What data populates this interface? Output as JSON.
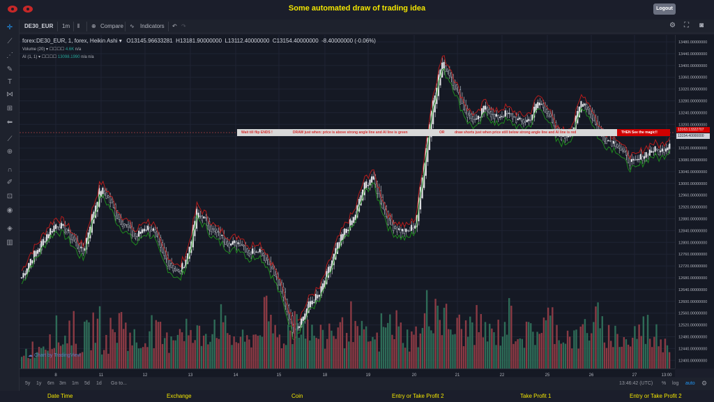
{
  "header": {
    "title": "Some automated draw of trading idea",
    "logout_label": "Logout"
  },
  "toolbar": {
    "symbol": "DE30_EUR",
    "interval": "1m",
    "compare": "Compare",
    "indicators": "Indicators"
  },
  "legend": {
    "series": "forex:DE30_EUR, 1, forex, Heikin Ashi",
    "open": "O13145.96633281",
    "high": "H13181.90000000",
    "low": "L13112.40000000",
    "close": "C13154.40000000",
    "change": "-8.40000000 (-0.06%)",
    "volume_label": "Volume (20)",
    "volume_value": "4.6K",
    "volume_na": "n/a",
    "ai_label": "AI (1, 1)",
    "ai_value": "13098.1990",
    "ai_na1": "n/a",
    "ai_na2": "n/a"
  },
  "annotation": {
    "part1": "Wait till flip ENDS !",
    "part2": "DRAW just when:  price is above strong angle line and AI line is green",
    "part3": "OR",
    "part4": "draw shorts just when price still below strong angle line and AI line is red",
    "magic": "THEN See the magic!!"
  },
  "price_axis": {
    "labels": [
      "13480.00000000",
      "13440.00000000",
      "13400.00000000",
      "13360.00000000",
      "13320.00000000",
      "13280.00000000",
      "13240.00000000",
      "13200.00000000",
      "13160.00000000",
      "13120.00000000",
      "13080.00000000",
      "13040.00000000",
      "13000.00000000",
      "12960.00000000",
      "12920.00000000",
      "12880.00000000",
      "12840.00000000",
      "12800.00000000",
      "12760.00000000",
      "12720.00000000",
      "12680.00000000",
      "12640.00000000",
      "12600.00000000",
      "12560.00000000",
      "12520.00000000",
      "12480.00000000",
      "12440.00000000",
      "12400.00000000"
    ],
    "tag_red": "13163.13322707",
    "tag_white": "13154.40000000"
  },
  "time_axis": {
    "labels": [
      "8",
      "11",
      "12",
      "13",
      "14",
      "15",
      "18",
      "19",
      "20",
      "21",
      "22",
      "25",
      "26",
      "27",
      "13:00"
    ]
  },
  "bottom_bar": {
    "ranges": [
      "5y",
      "1y",
      "6m",
      "3m",
      "1m",
      "5d",
      "1d"
    ],
    "goto": "Go to...",
    "clock": "13:46:42 (UTC)",
    "percent": "%",
    "log": "log",
    "auto": "auto"
  },
  "footer": {
    "items": [
      "Date Time",
      "Exchange",
      "Coin",
      "Entry or Take Profit 2",
      "Take Profit 1",
      "Entry or Take Profit 2"
    ]
  },
  "watermark": "Chart by TradingView",
  "colors": {
    "accent_yellow": "#f3e600",
    "bull": "#26a69a",
    "bear": "#ef5350",
    "ai_green": "#1e8a1e",
    "ai_red": "#b71c1c"
  },
  "chart_data": {
    "type": "candlestick",
    "symbol": "forex:DE30_EUR",
    "ylim": [
      12380,
      13500
    ],
    "x_ticks": [
      "8",
      "11",
      "12",
      "13",
      "14",
      "15",
      "18",
      "19",
      "20",
      "21",
      "22",
      "25",
      "26",
      "27",
      "13:00"
    ],
    "close_path": [
      12700,
      12760,
      12800,
      12850,
      12880,
      12860,
      12820,
      12780,
      12900,
      13000,
      12960,
      12900,
      12870,
      12830,
      12870,
      12860,
      12780,
      12740,
      12710,
      12780,
      12920,
      12890,
      12850,
      12830,
      12810,
      12820,
      12780,
      12800,
      12760,
      12700,
      12620,
      12520,
      12560,
      12620,
      12640,
      12720,
      12800,
      12860,
      12900,
      13000,
      13040,
      12960,
      12880,
      12860,
      12850,
      12880,
      13100,
      13300,
      13420,
      13380,
      13300,
      13240,
      13220,
      13280,
      13230,
      13250,
      13240,
      13220,
      13230,
      13290,
      13260,
      13180,
      13170,
      13200,
      13300,
      13250,
      13180,
      13160,
      13150,
      13100,
      13080,
      13110,
      13130,
      13120,
      13154
    ],
    "volume_path": [
      25,
      30,
      40,
      55,
      45,
      60,
      35,
      50,
      65,
      40,
      55,
      70,
      45,
      35,
      60,
      50,
      40,
      55,
      65,
      45,
      50,
      60,
      70,
      55,
      45,
      40,
      50,
      75,
      60,
      45,
      55,
      80,
      65,
      50,
      45,
      60,
      55,
      70,
      50,
      45,
      40,
      60,
      65,
      55,
      45,
      50,
      85,
      95,
      70,
      60,
      55,
      65,
      60,
      50,
      55,
      75,
      60,
      50,
      55,
      65,
      70,
      55,
      50,
      45,
      60,
      70,
      55,
      50,
      45,
      40,
      55,
      60,
      50,
      45,
      42
    ]
  }
}
